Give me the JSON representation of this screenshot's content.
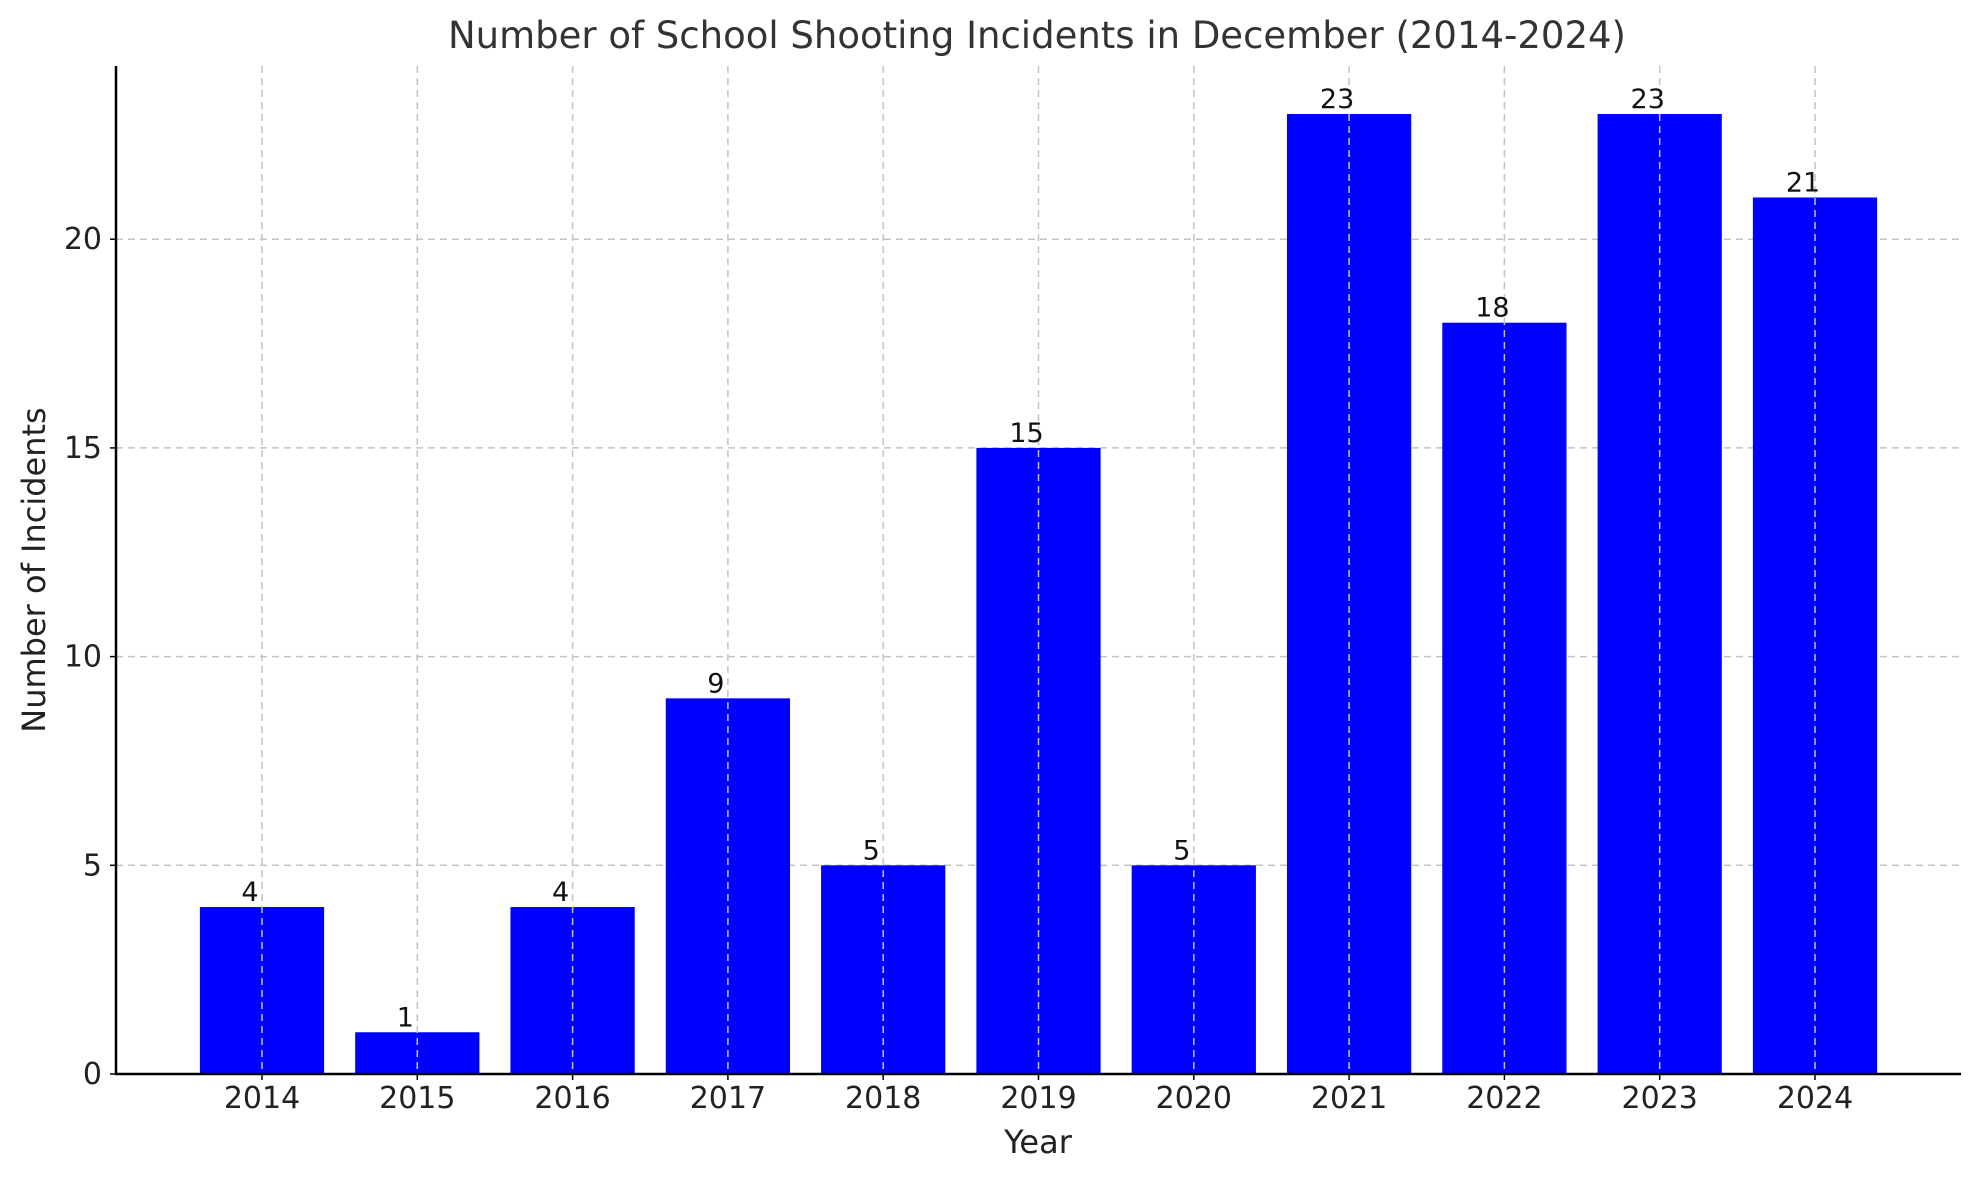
{
  "chart_data": {
    "type": "bar",
    "title": "Number of School Shooting Incidents in December (2014-2024)",
    "xlabel": "Year",
    "ylabel": "Number of Incidents",
    "categories": [
      "2014",
      "2015",
      "2016",
      "2017",
      "2018",
      "2019",
      "2020",
      "2021",
      "2022",
      "2023",
      "2024"
    ],
    "values": [
      4,
      1,
      4,
      9,
      5,
      15,
      5,
      23,
      18,
      23,
      21
    ],
    "ylim": [
      0,
      24.15
    ],
    "yticks": [
      0,
      5,
      10,
      15,
      20
    ],
    "bar_color": "#0000ff",
    "grid": true,
    "data_labels": true
  }
}
